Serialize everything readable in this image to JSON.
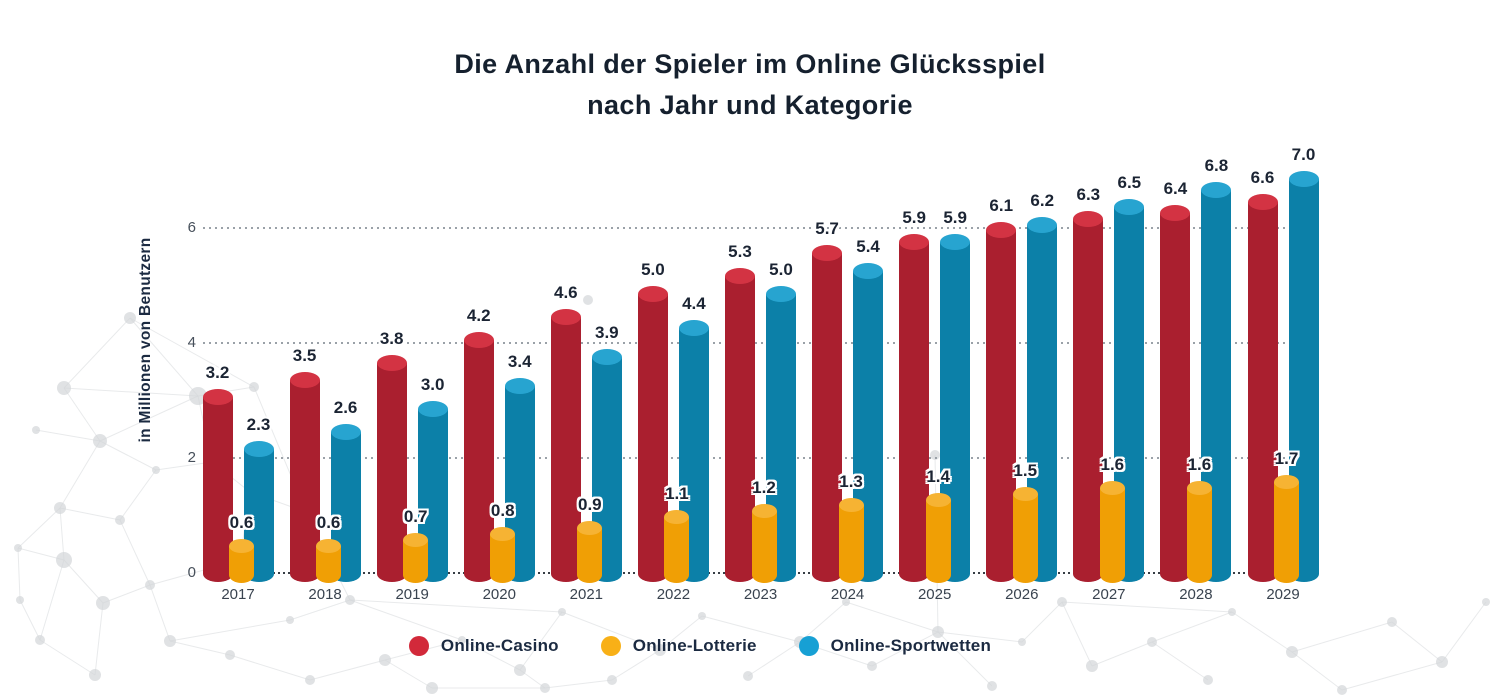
{
  "title": {
    "line1": "Die Anzahl der Spieler im Online Glücksspiel",
    "line2": "nach Jahr und Kategorie"
  },
  "y_axis": {
    "title": "in Millionen von Benutzern"
  },
  "legend": [
    {
      "label": "Online-Casino",
      "color": "#d2293a"
    },
    {
      "label": "Online-Lotterie",
      "color": "#f8b017"
    },
    {
      "label": "Online-Sportwetten",
      "color": "#17a0d4"
    }
  ],
  "chart_data": {
    "type": "bar",
    "title": "Die Anzahl der Spieler im Online Glücksspiel nach Jahr und Kategorie",
    "xlabel": "",
    "ylabel": "in Millionen von Benutzern",
    "categories": [
      "2017",
      "2018",
      "2019",
      "2020",
      "2021",
      "2022",
      "2023",
      "2024",
      "2025",
      "2026",
      "2027",
      "2028",
      "2029"
    ],
    "series": [
      {
        "name": "Online-Casino",
        "color": "#aa1f2f",
        "cap_color": "#d33343",
        "values": [
          3.2,
          3.5,
          3.8,
          4.2,
          4.6,
          5.0,
          5.3,
          5.7,
          5.9,
          6.1,
          6.3,
          6.4,
          6.6
        ]
      },
      {
        "name": "Online-Lotterie",
        "color": "#f09f05",
        "cap_color": "#f6b333",
        "values": [
          0.6,
          0.6,
          0.7,
          0.8,
          0.9,
          1.1,
          1.2,
          1.3,
          1.4,
          1.5,
          1.6,
          1.6,
          1.7
        ]
      },
      {
        "name": "Online-Sportwetten",
        "color": "#0c80a8",
        "cap_color": "#27a4d0",
        "values": [
          2.3,
          2.6,
          3.0,
          3.4,
          3.9,
          4.4,
          5.0,
          5.4,
          5.9,
          6.2,
          6.5,
          6.8,
          7.0
        ]
      }
    ],
    "yticks": [
      0,
      2,
      4,
      6
    ],
    "ylim": [
      0,
      7.25
    ],
    "grid": "dotted-horizontal",
    "legend_position": "bottom",
    "value_labels": "above-bars, one decimal"
  }
}
